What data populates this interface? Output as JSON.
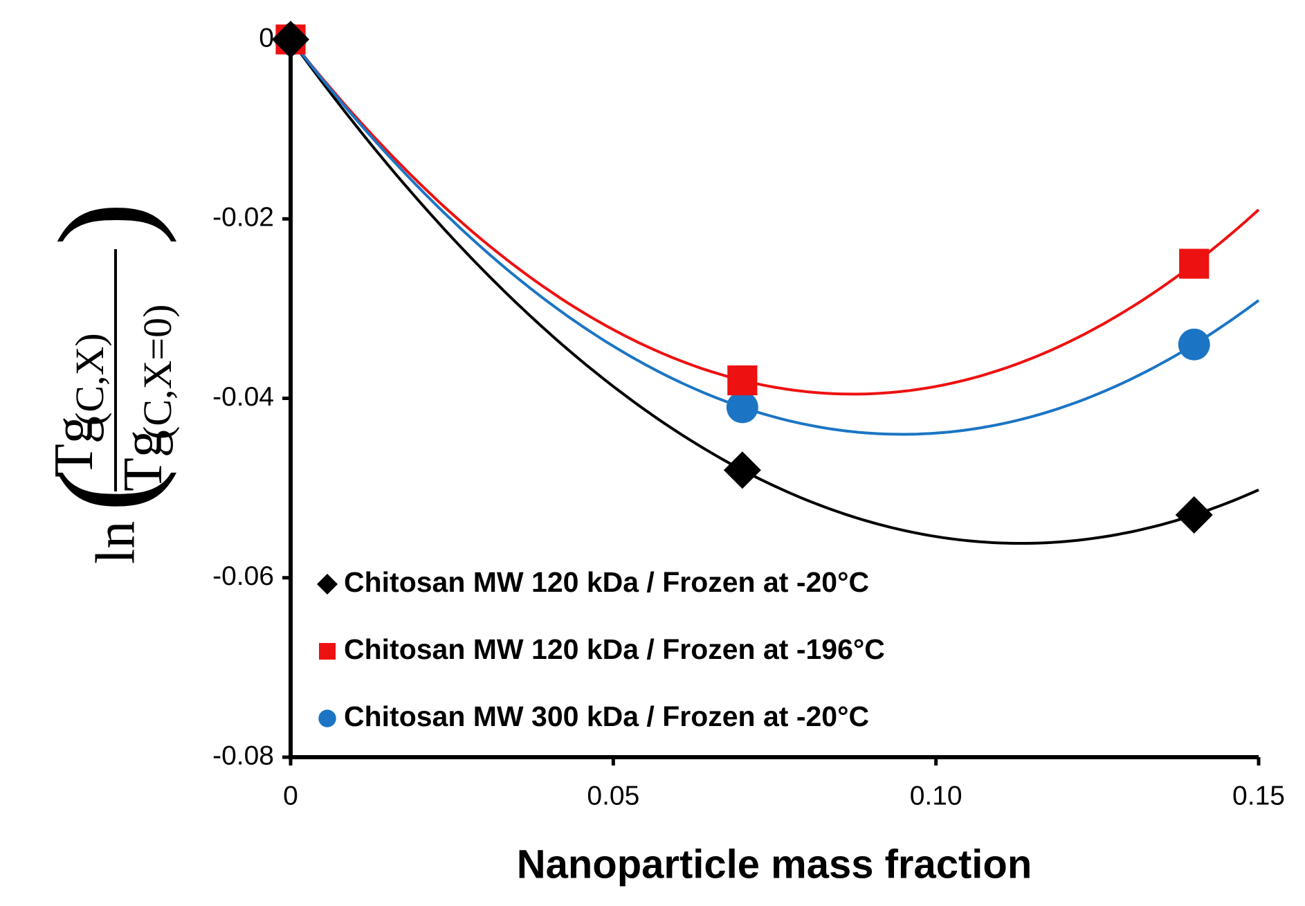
{
  "chart_data": {
    "type": "scatter",
    "trendline": "polynomial",
    "xlabel": "Nanoparticle mass fraction",
    "ylabel": {
      "function": "ln",
      "numerator": "Tg",
      "numerator_sub": "(C,X)",
      "denominator": "Tg",
      "denominator_sub": "(C,X=0)"
    },
    "xlim": [
      0,
      0.15
    ],
    "ylim": [
      -0.08,
      0
    ],
    "xticks": [
      0,
      0.05,
      {
        "value": 0.1,
        "label": "0.10"
      },
      0.15
    ],
    "yticks": [
      0,
      -0.02,
      -0.04,
      -0.06,
      -0.08
    ],
    "legend": "bottom-left",
    "series": [
      {
        "name": "Chitosan MW 120 kDa / Frozen at -20°C",
        "color": "#000000",
        "marker": "diamond",
        "x": [
          0,
          0.07,
          0.14
        ],
        "values": [
          0,
          -0.048,
          -0.053
        ]
      },
      {
        "name": "Chitosan MW 120 kDa / Frozen at -196°C",
        "color": "#ee1111",
        "marker": "square",
        "x": [
          0,
          0.07,
          0.14
        ],
        "values": [
          0,
          -0.038,
          -0.025
        ]
      },
      {
        "name": "Chitosan MW 300 kDa / Frozen at -20°C",
        "color": "#1b75c4",
        "marker": "circle",
        "x": [
          0,
          0.07,
          0.14
        ],
        "values": [
          0,
          -0.041,
          -0.034
        ]
      }
    ]
  }
}
